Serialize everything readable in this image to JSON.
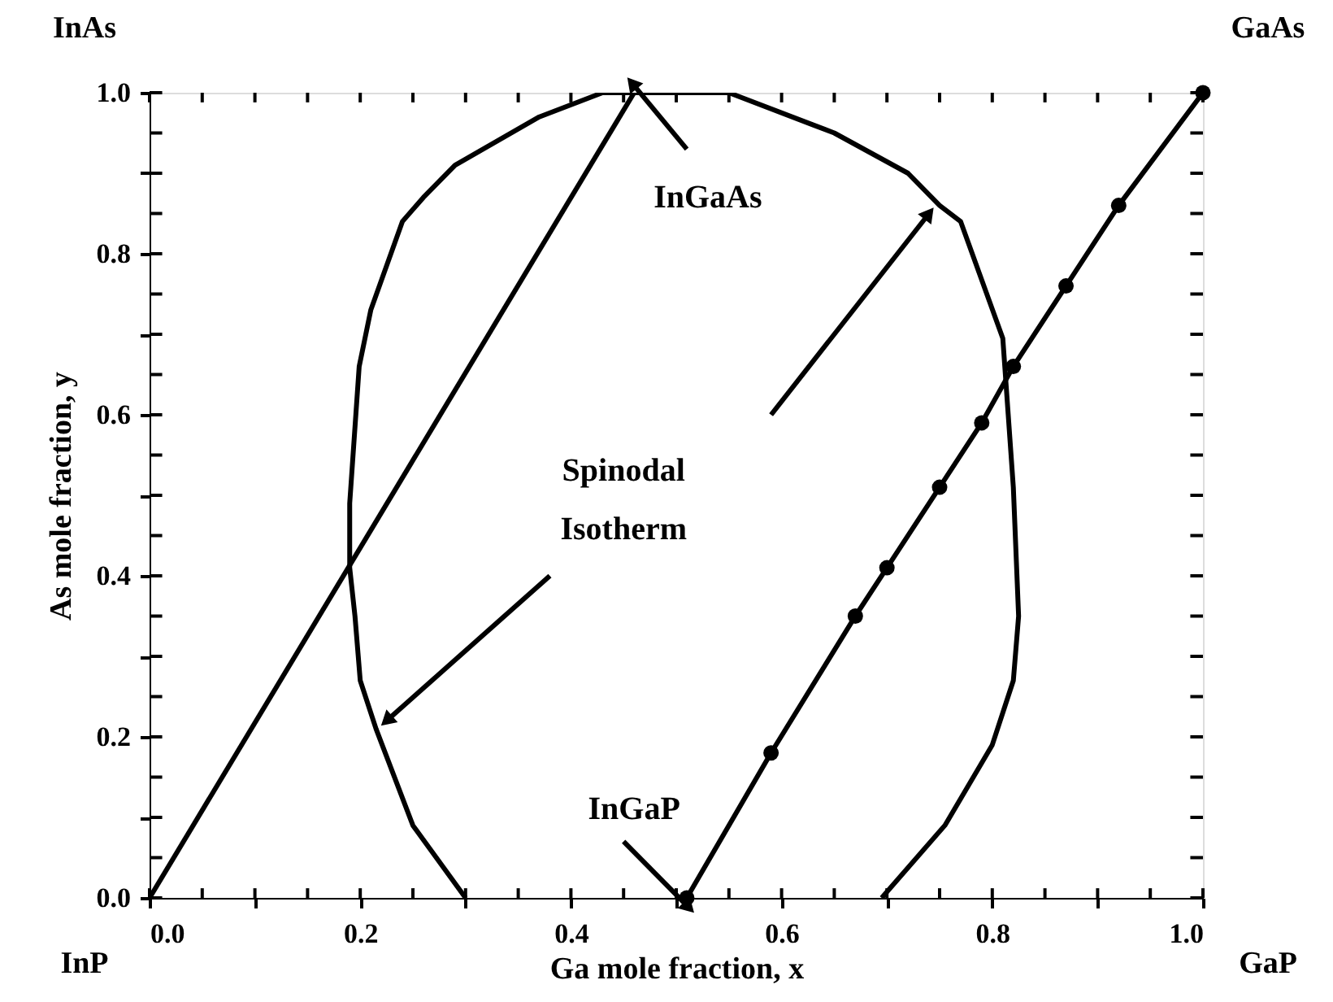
{
  "chart_data": {
    "type": "line",
    "xlabel": "Ga mole fraction, x",
    "ylabel": "As mole fraction, y",
    "xlim": [
      0,
      1
    ],
    "ylim": [
      0,
      1
    ],
    "xticks": [
      {
        "value": 0,
        "label": "0.0"
      },
      {
        "value": 0.05,
        "label": null
      },
      {
        "value": 0.1,
        "label": null
      },
      {
        "value": 0.15,
        "label": null
      },
      0.2,
      {
        "value": 0.25,
        "label": null
      },
      {
        "value": 0.3,
        "label": null
      },
      {
        "value": 0.35,
        "label": null
      },
      0.4,
      {
        "value": 0.45,
        "label": null
      },
      {
        "value": 0.5,
        "label": null
      },
      {
        "value": 0.55,
        "label": null
      },
      0.6,
      {
        "value": 0.65,
        "label": null
      },
      {
        "value": 0.7,
        "label": null
      },
      {
        "value": 0.75,
        "label": null
      },
      0.8,
      {
        "value": 0.85,
        "label": null
      },
      {
        "value": 0.9,
        "label": null
      },
      {
        "value": 0.95,
        "label": null
      },
      {
        "value": 1,
        "label": "1.0"
      }
    ],
    "yticks": [
      {
        "value": 0,
        "label": "0.0"
      },
      {
        "value": 0.05,
        "label": null
      },
      {
        "value": 0.1,
        "label": null
      },
      {
        "value": 0.15,
        "label": null
      },
      0.2,
      {
        "value": 0.25,
        "label": null
      },
      {
        "value": 0.3,
        "label": null
      },
      {
        "value": 0.35,
        "label": null
      },
      0.4,
      {
        "value": 0.45,
        "label": null
      },
      {
        "value": 0.5,
        "label": null
      },
      {
        "value": 0.55,
        "label": null
      },
      0.6,
      {
        "value": 0.65,
        "label": null
      },
      {
        "value": 0.7,
        "label": null
      },
      {
        "value": 0.75,
        "label": null
      },
      0.8,
      {
        "value": 0.85,
        "label": null
      },
      {
        "value": 0.9,
        "label": null
      },
      {
        "value": 0.95,
        "label": null
      },
      {
        "value": 1,
        "label": "1.0"
      }
    ],
    "grid": false,
    "line_style": "solid",
    "series": [
      {
        "color": "#000000",
        "marker": "none",
        "x": [
          0,
          0.46
        ],
        "values": [
          0,
          1.0
        ]
      },
      {
        "color": "#000000",
        "marker": "circle",
        "x": [
          0.51,
          0.59,
          0.67,
          0.7,
          0.75,
          0.79,
          0.82,
          0.87,
          0.92,
          1.0
        ],
        "values": [
          0,
          0.18,
          0.35,
          0.41,
          0.51,
          0.59,
          0.66,
          0.76,
          0.86,
          1.0
        ]
      },
      {
        "color": "#000000",
        "marker": "none",
        "x": [
          0.3,
          0.25,
          0.215,
          0.2,
          0.195,
          0.19,
          0.19,
          0.199,
          0.21,
          0.24,
          0.26,
          0.29,
          0.33,
          0.37,
          0.43,
          0.55,
          0.63,
          0.65,
          0.72,
          0.75,
          0.77,
          0.81,
          0.82,
          0.825,
          0.82,
          0.8,
          0.755,
          0.695
        ],
        "values": [
          0,
          0.09,
          0.21,
          0.27,
          0.35,
          0.41,
          0.49,
          0.66,
          0.73,
          0.84,
          0.87,
          0.91,
          0.94,
          0.97,
          1.0,
          1.0,
          0.96,
          0.95,
          0.9,
          0.86,
          0.84,
          0.695,
          0.51,
          0.35,
          0.27,
          0.19,
          0.09,
          0
        ]
      }
    ],
    "annotations": [
      {
        "text": "InGaAs",
        "x": 0.47,
        "y": 1.0
      },
      {
        "text": "Spinodal Isotherm",
        "x": 0.215,
        "y": 0.21
      },
      {
        "text": "InGaP",
        "x": 0.5,
        "y": 0.0
      },
      "InAs",
      "GaAs",
      "InP",
      "GaP"
    ]
  }
}
